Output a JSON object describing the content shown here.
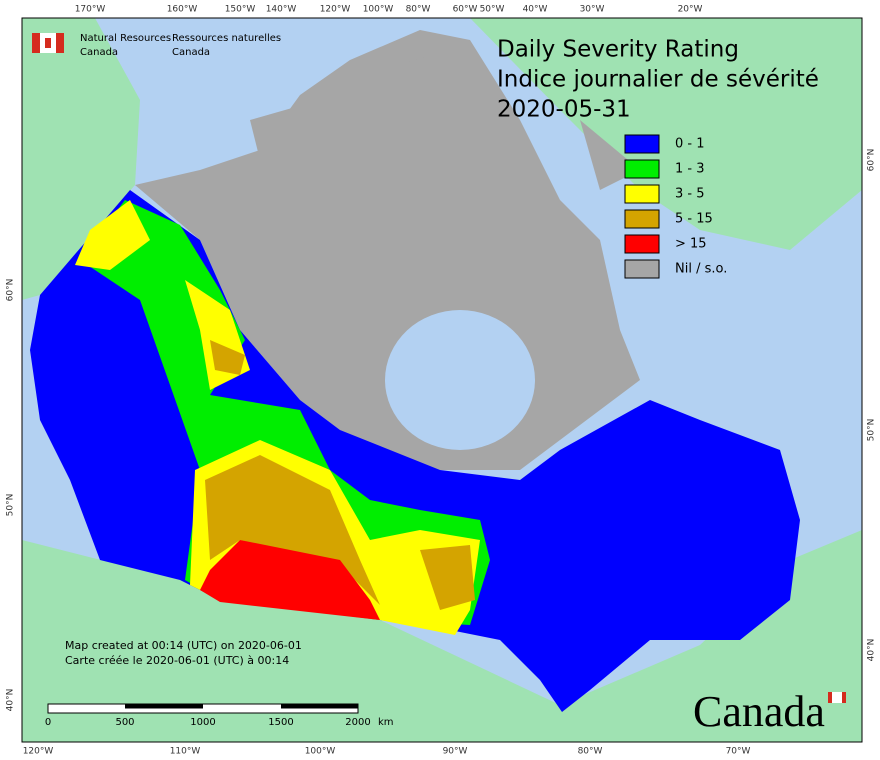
{
  "header": {
    "org_en": [
      "Natural Resources",
      "Canada"
    ],
    "org_fr": [
      "Ressources naturelles",
      "Canada"
    ]
  },
  "title": {
    "en": "Daily Severity Rating",
    "fr": "Indice journalier de sévérité",
    "date": "2020-05-31"
  },
  "legend": [
    {
      "label": "0 - 1",
      "color": "#0000ff"
    },
    {
      "label": "1 - 3",
      "color": "#00ee00"
    },
    {
      "label": "3 - 5",
      "color": "#ffff00"
    },
    {
      "label": "5 - 15",
      "color": "#d4a400"
    },
    {
      "label": "> 15",
      "color": "#ff0000"
    },
    {
      "label": "Nil / s.o.",
      "color": "#a6a6a6"
    }
  ],
  "top_labels": [
    "170°W",
    "160°W",
    "150°W",
    "140°W",
    "120°W",
    "100°W",
    "80°W",
    "60°W",
    "50°W",
    "40°W",
    "30°W",
    "20°W"
  ],
  "bottom_labels": [
    "120°W",
    "110°W",
    "100°W",
    "90°W",
    "80°W",
    "70°W"
  ],
  "left_labels": [
    "60°N",
    "50°N",
    "40°N"
  ],
  "right_labels": [
    "60°N",
    "50°N",
    "40°N"
  ],
  "notes": [
    "Map created at 00:14 (UTC) on 2020-06-01",
    "Carte créée le 2020-06-01 (UTC) à 00:14"
  ],
  "scale": {
    "ticks": [
      "0",
      "500",
      "1000",
      "1500",
      "2000"
    ],
    "unit": "km"
  },
  "wordmark": "Canada"
}
